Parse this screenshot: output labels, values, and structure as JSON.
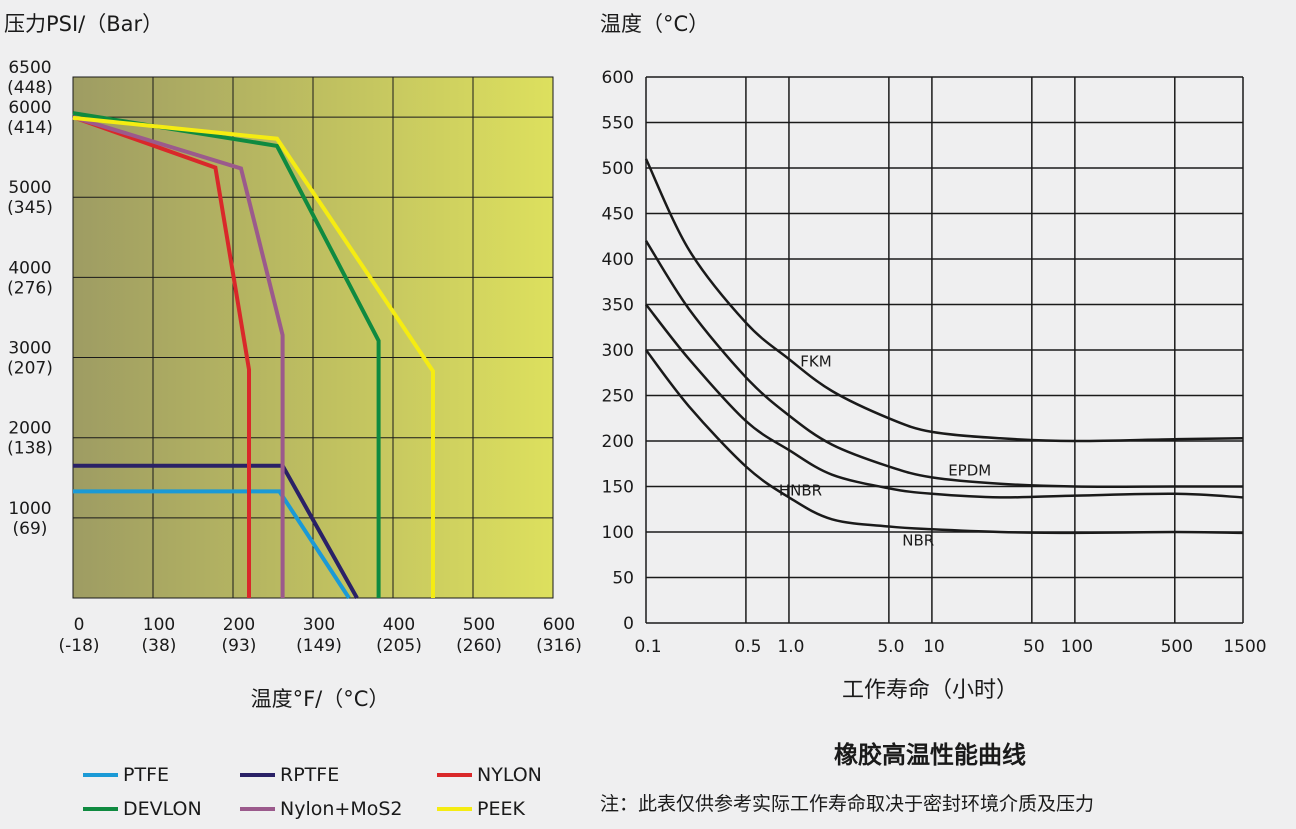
{
  "colors": {
    "background": "#efeff0",
    "grid": "#1a1a1a",
    "left_plot_gradient_start": "#9e9c63",
    "left_plot_gradient_end": "#dde05e"
  },
  "chart_data": [
    {
      "type": "line",
      "ylabel": "压力PSI/（Bar）",
      "xlabel": "温度°F/（°C）",
      "xlim": [
        0,
        600
      ],
      "ylim": [
        0,
        6500
      ],
      "grid": true,
      "legend_position": "bottom",
      "x_ticks": [
        {
          "v": 0,
          "top": "0",
          "bottom": "(-18)"
        },
        {
          "v": 100,
          "top": "100",
          "bottom": "(38)"
        },
        {
          "v": 200,
          "top": "200",
          "bottom": "(93)"
        },
        {
          "v": 300,
          "top": "300",
          "bottom": "(149)"
        },
        {
          "v": 400,
          "top": "400",
          "bottom": "(205)"
        },
        {
          "v": 500,
          "top": "500",
          "bottom": "(260)"
        },
        {
          "v": 600,
          "top": "600",
          "bottom": "(316)"
        }
      ],
      "y_ticks": [
        {
          "v": 1000,
          "top": "1000",
          "bottom": "(69)"
        },
        {
          "v": 2000,
          "top": "2000",
          "bottom": "(138)"
        },
        {
          "v": 3000,
          "top": "3000",
          "bottom": "(207)"
        },
        {
          "v": 4000,
          "top": "4000",
          "bottom": "(276)"
        },
        {
          "v": 5000,
          "top": "5000",
          "bottom": "(345)"
        },
        {
          "v": 6000,
          "top": "6000",
          "bottom": "(414)"
        },
        {
          "v": 6500,
          "top": "6500",
          "bottom": "(448)"
        }
      ],
      "series": [
        {
          "name": "PTFE",
          "color": "#1b9ad6",
          "points": [
            [
              0,
              1330
            ],
            [
              258,
              1330
            ],
            [
              345,
              0
            ]
          ]
        },
        {
          "name": "RPTFE",
          "color": "#2a2166",
          "points": [
            [
              0,
              1650
            ],
            [
              262,
              1650
            ],
            [
              355,
              0
            ]
          ]
        },
        {
          "name": "NYLON",
          "color": "#d9282a",
          "points": [
            [
              0,
              6000
            ],
            [
              178,
              5370
            ],
            [
              220,
              2850
            ],
            [
              220,
              0
            ]
          ]
        },
        {
          "name": "DEVLON",
          "color": "#0f8a40",
          "points": [
            [
              0,
              6050
            ],
            [
              255,
              5640
            ],
            [
              382,
              3210
            ],
            [
              382,
              0
            ]
          ]
        },
        {
          "name": "Nylon+MoS2",
          "color": "#9b5a8c",
          "points": [
            [
              0,
              6000
            ],
            [
              210,
              5360
            ],
            [
              262,
              3280
            ],
            [
              262,
              0
            ]
          ]
        },
        {
          "name": "PEEK",
          "color": "#f5ec12",
          "points": [
            [
              0,
              5990
            ],
            [
              255,
              5730
            ],
            [
              450,
              2830
            ],
            [
              450,
              0
            ]
          ]
        }
      ]
    },
    {
      "type": "line",
      "ylabel": "温度（°C）",
      "xlabel": "工作寿命（小时）",
      "title": "橡胶高温性能曲线",
      "x_scale": "log",
      "xlim": [
        0.1,
        1500
      ],
      "ylim": [
        0,
        600
      ],
      "grid": true,
      "y_ticks": [
        0,
        50,
        100,
        150,
        200,
        250,
        300,
        350,
        400,
        450,
        500,
        550,
        600
      ],
      "x_ticks": [
        {
          "v": 0.1,
          "label": "0.1"
        },
        {
          "v": 0.5,
          "label": "0.5"
        },
        {
          "v": 1,
          "label": "1.0"
        },
        {
          "v": 5,
          "label": "5.0"
        },
        {
          "v": 10,
          "label": "10"
        },
        {
          "v": 50,
          "label": "50"
        },
        {
          "v": 100,
          "label": "100"
        },
        {
          "v": 500,
          "label": "500"
        },
        {
          "v": 1500,
          "label": "1500"
        }
      ],
      "series": [
        {
          "name": "FKM",
          "label_at": [
            1.2,
            282
          ],
          "points": [
            [
              0.1,
              510
            ],
            [
              0.2,
              410
            ],
            [
              0.5,
              330
            ],
            [
              1,
              290
            ],
            [
              2,
              255
            ],
            [
              5,
              225
            ],
            [
              10,
              210
            ],
            [
              30,
              203
            ],
            [
              100,
              200
            ],
            [
              500,
              202
            ],
            [
              1500,
              203
            ]
          ]
        },
        {
          "name": "EPDM",
          "label_at": [
            13,
            162
          ],
          "points": [
            [
              0.1,
              420
            ],
            [
              0.2,
              345
            ],
            [
              0.5,
              270
            ],
            [
              1,
              228
            ],
            [
              2,
              196
            ],
            [
              5,
              172
            ],
            [
              10,
              160
            ],
            [
              30,
              153
            ],
            [
              100,
              150
            ],
            [
              500,
              150
            ],
            [
              1500,
              150
            ]
          ]
        },
        {
          "name": "HNBR",
          "label_at": [
            0.85,
            140
          ],
          "points": [
            [
              0.1,
              350
            ],
            [
              0.2,
              290
            ],
            [
              0.5,
              222
            ],
            [
              1,
              190
            ],
            [
              2,
              163
            ],
            [
              5,
              148
            ],
            [
              10,
              142
            ],
            [
              30,
              138
            ],
            [
              100,
              140
            ],
            [
              500,
              142
            ],
            [
              1500,
              138
            ]
          ]
        },
        {
          "name": "NBR",
          "label_at": [
            6.2,
            85
          ],
          "points": [
            [
              0.1,
              300
            ],
            [
              0.2,
              238
            ],
            [
              0.5,
              172
            ],
            [
              1,
              138
            ],
            [
              2,
              114
            ],
            [
              5,
              106
            ],
            [
              10,
              103
            ],
            [
              30,
              100
            ],
            [
              100,
              99
            ],
            [
              500,
              100
            ],
            [
              1500,
              99
            ]
          ]
        }
      ],
      "note": "注：此表仅供参考实际工作寿命取决于密封环境介质及压力"
    }
  ]
}
